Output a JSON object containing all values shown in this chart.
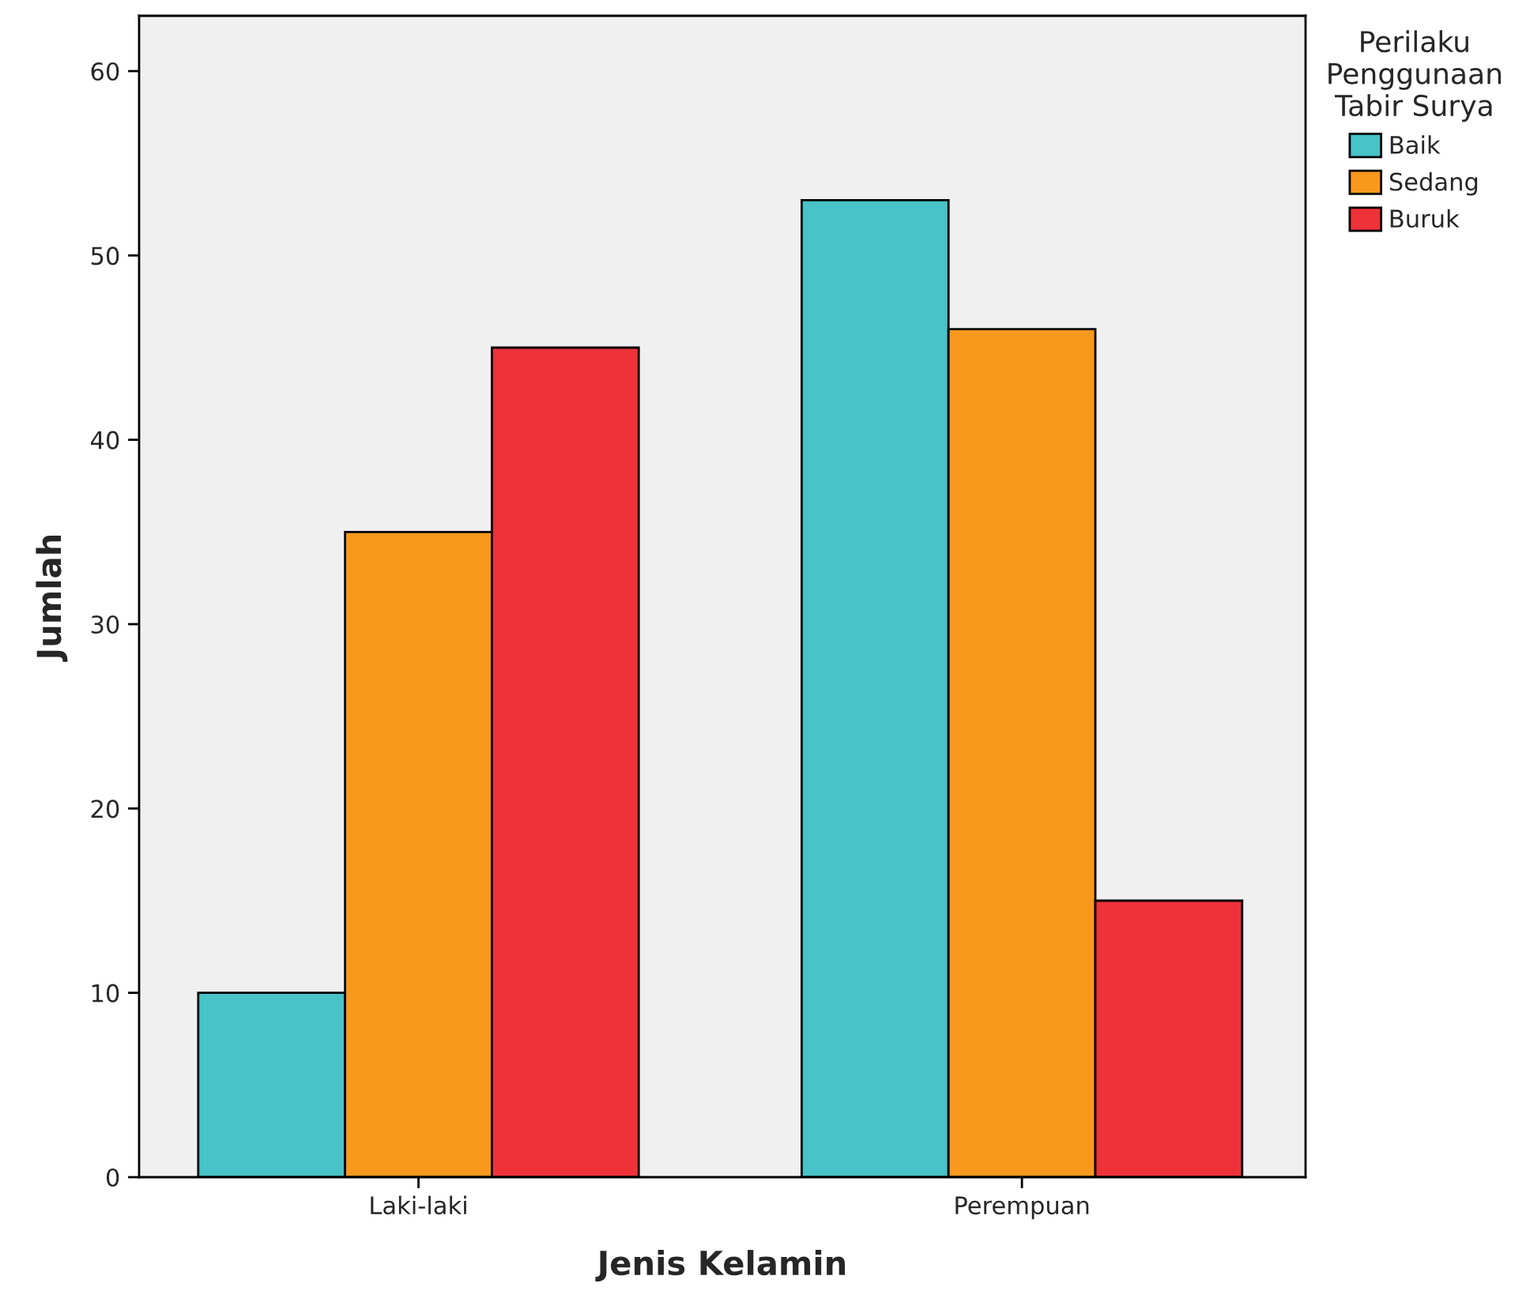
{
  "chart_data": {
    "type": "bar",
    "xlabel": "Jenis Kelamin",
    "ylabel": "Jumlah",
    "legend_title": "Perilaku\nPenggunaan\nTabir Surya",
    "categories": [
      "Laki-laki",
      "Perempuan"
    ],
    "series": [
      {
        "name": "Baik",
        "color": "#48c3c7",
        "values": [
          10,
          53
        ]
      },
      {
        "name": "Sedang",
        "color": "#f8991d",
        "values": [
          35,
          46
        ]
      },
      {
        "name": "Buruk",
        "color": "#ef3239",
        "values": [
          45,
          15
        ]
      }
    ],
    "ylim": [
      0,
      63
    ],
    "yticks": [
      0,
      10,
      20,
      30,
      40,
      50,
      60
    ],
    "grid": false,
    "legend": "right"
  }
}
